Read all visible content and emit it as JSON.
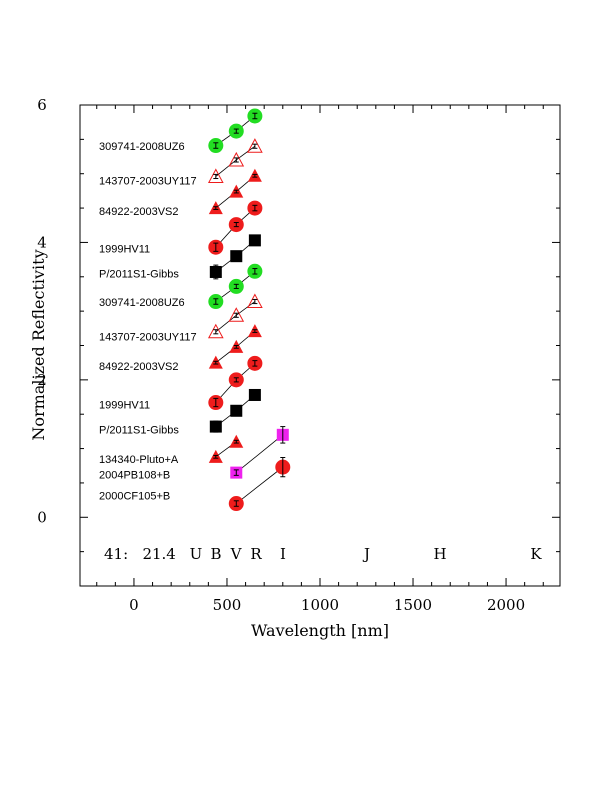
{
  "chart_data": {
    "type": "scatter",
    "xlabel": "Wavelength [nm]",
    "ylabel": "Normalized Reflectivity",
    "xlim": [
      -290,
      2290
    ],
    "ylim": [
      -1,
      6
    ],
    "x_ticks": [
      0,
      500,
      1000,
      1500,
      2000
    ],
    "y_ticks": [
      0,
      2,
      4,
      6
    ],
    "band_info": "41:   21.4",
    "bands": [
      {
        "label": "U",
        "x": 360
      },
      {
        "label": "B",
        "x": 440
      },
      {
        "label": "V",
        "x": 550
      },
      {
        "label": "R",
        "x": 650
      },
      {
        "label": "I",
        "x": 800
      },
      {
        "label": "J",
        "x": 1250
      },
      {
        "label": "H",
        "x": 1650
      },
      {
        "label": "K",
        "x": 2150
      }
    ],
    "colors": {
      "red": "#ee1c1c",
      "green": "#22dd22",
      "black": "#000000",
      "magenta": "#ee22ee"
    },
    "series": [
      {
        "name": "2000CF105+B",
        "label_y": 0.32,
        "marker": "circle",
        "color": "#ee1c1c",
        "x": [
          550,
          800
        ],
        "y": [
          0.2,
          0.73
        ],
        "err": [
          0.04,
          0.14
        ]
      },
      {
        "name": "2004PB108+B",
        "label_y": 0.62,
        "marker": "square",
        "color": "#ee22ee",
        "x": [
          550,
          800
        ],
        "y": [
          0.65,
          1.2
        ],
        "err": [
          0.04,
          0.12
        ]
      },
      {
        "name": "134340-Pluto+A",
        "label_y": 0.85,
        "marker": "triangle",
        "color": "#ee1c1c",
        "x": [
          440,
          550
        ],
        "y": [
          0.88,
          1.1
        ],
        "err": [
          0.02,
          0.02
        ]
      },
      {
        "name": "P/2011S1-Gibbs",
        "label_y": 1.28,
        "marker": "square",
        "color": "#000000",
        "x": [
          440,
          550,
          650
        ],
        "y": [
          1.32,
          1.55,
          1.78
        ],
        "err": [
          0.08,
          0.03,
          0.03
        ]
      },
      {
        "name": "1999HV11",
        "label_y": 1.64,
        "marker": "circle",
        "color": "#ee1c1c",
        "x": [
          440,
          550,
          650
        ],
        "y": [
          1.67,
          2.0,
          2.24
        ],
        "err": [
          0.06,
          0.03,
          0.04
        ]
      },
      {
        "name": "84922-2003VS2",
        "label_y": 2.2,
        "marker": "triangle",
        "color": "#ee1c1c",
        "x": [
          440,
          550,
          650
        ],
        "y": [
          2.25,
          2.48,
          2.71
        ],
        "err": [
          0.02,
          0.02,
          0.02
        ]
      },
      {
        "name": "143707-2003UY117",
        "label_y": 2.63,
        "marker": "triangle-open",
        "color": "#ee1c1c",
        "x": [
          440,
          550,
          650
        ],
        "y": [
          2.7,
          2.94,
          3.14
        ],
        "err": [
          0.03,
          0.03,
          0.03
        ]
      },
      {
        "name": "309741-2008UZ6",
        "label_y": 3.13,
        "marker": "circle",
        "color": "#22dd22",
        "x": [
          440,
          550,
          650
        ],
        "y": [
          3.14,
          3.36,
          3.58
        ],
        "err": [
          0.04,
          0.03,
          0.04
        ]
      },
      {
        "name": "P/2011S1-Gibbs",
        "label_y": 3.55,
        "marker": "square",
        "color": "#000000",
        "x": [
          440,
          550,
          650
        ],
        "y": [
          3.57,
          3.8,
          4.03
        ],
        "err": [
          0.1,
          0.03,
          0.03
        ]
      },
      {
        "name": "1999HV11",
        "label_y": 3.91,
        "marker": "circle",
        "color": "#ee1c1c",
        "x": [
          440,
          550,
          650
        ],
        "y": [
          3.93,
          4.26,
          4.5
        ],
        "err": [
          0.06,
          0.03,
          0.04
        ]
      },
      {
        "name": "84922-2003VS2",
        "label_y": 4.46,
        "marker": "triangle",
        "color": "#ee1c1c",
        "x": [
          440,
          550,
          650
        ],
        "y": [
          4.5,
          4.74,
          4.97
        ],
        "err": [
          0.02,
          0.02,
          0.02
        ]
      },
      {
        "name": "143707-2003UY117",
        "label_y": 4.9,
        "marker": "triangle-open",
        "color": "#ee1c1c",
        "x": [
          440,
          550,
          650
        ],
        "y": [
          4.96,
          5.2,
          5.4
        ],
        "err": [
          0.03,
          0.03,
          0.03
        ]
      },
      {
        "name": "309741-2008UZ6",
        "label_y": 5.4,
        "marker": "circle",
        "color": "#22dd22",
        "x": [
          440,
          550,
          650
        ],
        "y": [
          5.41,
          5.62,
          5.84
        ],
        "err": [
          0.04,
          0.03,
          0.04
        ]
      }
    ]
  }
}
